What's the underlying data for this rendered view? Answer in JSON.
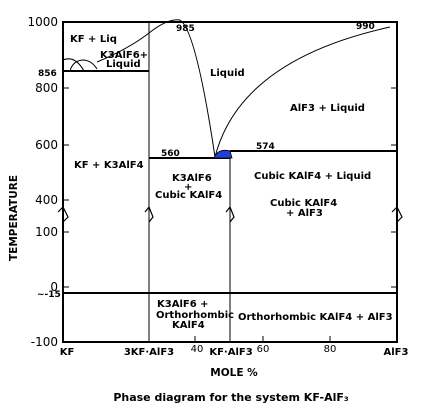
{
  "diagram": {
    "caption": "Phase diagram for the system KF-AlF₃",
    "x_axis_title": "MOLE %",
    "y_axis_title": "TEMPERATURE",
    "y_ticks": [
      "1000",
      "800",
      "600",
      "400",
      "100",
      "0",
      "-100"
    ],
    "x_ticks": {
      "kf": "KF",
      "k3alf6": "3KF·AlF3",
      "forty": "40",
      "kalf4": "KF·AlF3",
      "sixty": "60",
      "eighty": "80",
      "alf3": "AlF3"
    },
    "points": {
      "t985": "985",
      "t990": "990",
      "t856": "856",
      "t560": "560",
      "t574": "574",
      "t_minus15": "~-15"
    },
    "regions": {
      "kf_liq": "KF + Liq",
      "k3alf6_liquid_1": "K3AlF6+",
      "k3alf6_liquid_2": "Liquid",
      "liquid": "Liquid",
      "alf3_liquid": "AlF3 + Liquid",
      "kf_k3alf4": "KF + K3AlF4",
      "k3alf6_cubic_1": "K3AlF6",
      "k3alf6_cubic_2": "+",
      "k3alf6_cubic_3": "Cubic KAlF4",
      "cubic_kalf4_liquid": "Cubic KAlF4 + Liquid",
      "cubic_kalf4_alf3_1": "Cubic KAlF4",
      "cubic_kalf4_alf3_2": "+ AlF3",
      "k3alf6_ortho_1": "K3AlF6  +",
      "k3alf6_ortho_2": "Orthorhombic",
      "k3alf6_ortho_3": "KAlF4",
      "ortho_kalf4_alf3": "Orthorhombic KAlF4 + AlF3"
    },
    "colors": {
      "eutectic_fill": "#1f3fd6",
      "lines": "#000000"
    }
  }
}
